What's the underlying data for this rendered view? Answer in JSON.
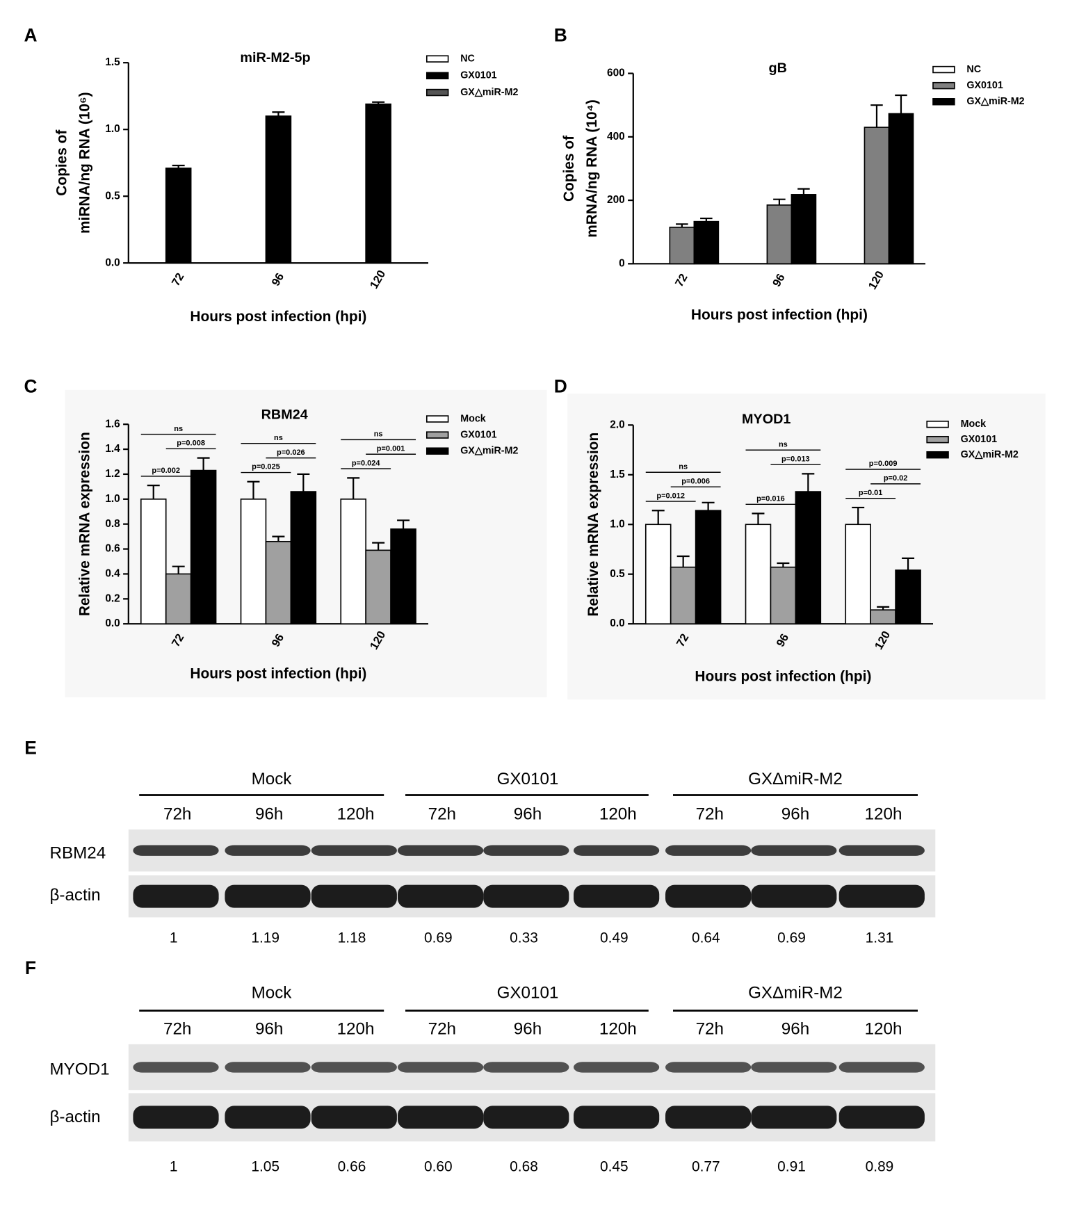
{
  "chart_data": [
    {
      "panel": "A",
      "type": "bar",
      "title": "miR-M2-5p",
      "ylabel": [
        "Copies of",
        "miRNA/ng RNA (10⁶)"
      ],
      "xlabel": "Hours post infection (hpi)",
      "categories": [
        "72",
        "96",
        "120"
      ],
      "series": [
        {
          "name": "NC",
          "color": "#ffffff",
          "values": [
            null,
            null,
            null
          ],
          "errors": [
            null,
            null,
            null
          ]
        },
        {
          "name": "GX0101",
          "color": "#000000",
          "values": [
            0.71,
            1.1,
            1.19
          ],
          "errors": [
            0.02,
            0.03,
            0.015
          ]
        },
        {
          "name": "GX△miR-M2",
          "color": "#555555",
          "values": [
            null,
            null,
            null
          ],
          "errors": [
            null,
            null,
            null
          ]
        }
      ],
      "ylim": [
        0,
        1.5
      ],
      "yticks": [
        {
          "value": 0,
          "label": "0.0"
        },
        0.5,
        {
          "value": 1,
          "label": "1.0"
        },
        1.5
      ]
    },
    {
      "panel": "B",
      "type": "bar",
      "title": "gB",
      "ylabel": [
        "Copies of",
        "mRNA/ng RNA (10⁴)"
      ],
      "xlabel": "Hours post infection (hpi)",
      "categories": [
        "72",
        "96",
        "120"
      ],
      "series": [
        {
          "name": "NC",
          "color": "#ffffff",
          "values": [
            null,
            null,
            null
          ],
          "errors": [
            null,
            null,
            null
          ]
        },
        {
          "name": "GX0101",
          "color": "#808080",
          "values": [
            115,
            185,
            430
          ],
          "errors": [
            10,
            18,
            70
          ]
        },
        {
          "name": "GX△miR-M2",
          "color": "#000000",
          "values": [
            133,
            218,
            473
          ],
          "errors": [
            10,
            18,
            58
          ]
        }
      ],
      "ylim": [
        0,
        600
      ],
      "yticks": [
        0,
        200,
        400,
        600
      ]
    },
    {
      "panel": "C",
      "type": "bar",
      "title": "RBM24",
      "ylabel": [
        "Relative mRNA expression"
      ],
      "xlabel": "Hours post infection (hpi)",
      "categories": [
        "72",
        "96",
        "120"
      ],
      "series": [
        {
          "name": "Mock",
          "color": "#ffffff",
          "values": [
            1,
            1,
            1
          ],
          "errors": [
            0.11,
            0.14,
            0.17
          ]
        },
        {
          "name": "GX0101",
          "color": "#a0a0a0",
          "values": [
            0.4,
            0.66,
            0.59
          ],
          "errors": [
            0.06,
            0.04,
            0.06
          ]
        },
        {
          "name": "GX△miR-M2",
          "color": "#000000",
          "values": [
            1.23,
            1.06,
            0.76
          ],
          "errors": [
            0.1,
            0.14,
            0.07
          ]
        }
      ],
      "ylim": [
        0,
        1.6
      ],
      "yticks": [
        {
          "value": 0,
          "label": "0.0"
        },
        0.2,
        0.4,
        0.6,
        0.8,
        {
          "value": 1,
          "label": "1.0"
        },
        1.2,
        1.4,
        1.6
      ],
      "annotations": [
        {
          "text": "p=0.002",
          "category": "72",
          "from": "Mock",
          "to": "GX0101"
        },
        {
          "text": "p=0.008",
          "category": "72",
          "from": "GX0101",
          "to": "GX△miR-M2"
        },
        {
          "text": "ns",
          "category": "72",
          "from": "Mock",
          "to": "GX△miR-M2"
        },
        {
          "text": "p=0.025",
          "category": "96",
          "from": "Mock",
          "to": "GX0101"
        },
        {
          "text": "p=0.026",
          "category": "96",
          "from": "GX0101",
          "to": "GX△miR-M2"
        },
        {
          "text": "ns",
          "category": "96",
          "from": "Mock",
          "to": "GX△miR-M2"
        },
        {
          "text": "p=0.024",
          "category": "120",
          "from": "Mock",
          "to": "GX0101"
        },
        {
          "text": "p=0.001",
          "category": "120",
          "from": "GX0101",
          "to": "GX△miR-M2"
        },
        {
          "text": "ns",
          "category": "120",
          "from": "Mock",
          "to": "GX△miR-M2"
        }
      ]
    },
    {
      "panel": "D",
      "type": "bar",
      "title": "MYOD1",
      "ylabel": [
        "Relative mRNA expression"
      ],
      "xlabel": "Hours post infection (hpi)",
      "categories": [
        "72",
        "96",
        "120"
      ],
      "series": [
        {
          "name": "Mock",
          "color": "#ffffff",
          "values": [
            1,
            1,
            1
          ],
          "errors": [
            0.14,
            0.11,
            0.17
          ]
        },
        {
          "name": "GX0101",
          "color": "#a0a0a0",
          "values": [
            0.57,
            0.57,
            0.14
          ],
          "errors": [
            0.11,
            0.04,
            0.03
          ]
        },
        {
          "name": "GX△miR-M2",
          "color": "#000000",
          "values": [
            1.14,
            1.33,
            0.54
          ],
          "errors": [
            0.08,
            0.18,
            0.12
          ]
        }
      ],
      "ylim": [
        0,
        2
      ],
      "yticks": [
        {
          "value": 0,
          "label": "0.0"
        },
        0.5,
        {
          "value": 1,
          "label": "1.0"
        },
        1.5,
        {
          "value": 2,
          "label": "2.0"
        }
      ],
      "annotations": [
        {
          "text": "p=0.012",
          "category": "72",
          "from": "Mock",
          "to": "GX0101"
        },
        {
          "text": "p=0.006",
          "category": "72",
          "from": "GX0101",
          "to": "GX△miR-M2"
        },
        {
          "text": "ns",
          "category": "72",
          "from": "Mock",
          "to": "GX△miR-M2"
        },
        {
          "text": "p=0.016",
          "category": "96",
          "from": "Mock",
          "to": "GX0101"
        },
        {
          "text": "p=0.013",
          "category": "96",
          "from": "GX0101",
          "to": "GX△miR-M2"
        },
        {
          "text": "ns",
          "category": "96",
          "from": "Mock",
          "to": "GX△miR-M2"
        },
        {
          "text": "p=0.01",
          "category": "120",
          "from": "Mock",
          "to": "GX0101"
        },
        {
          "text": "p=0.02",
          "category": "120",
          "from": "GX0101",
          "to": "GX△miR-M2"
        },
        {
          "text": "p=0.009",
          "category": "120",
          "from": "Mock",
          "to": "GX△miR-M2"
        }
      ]
    }
  ],
  "blots": [
    {
      "panel": "E",
      "groups": [
        {
          "name": "Mock",
          "lanes": [
            "72h",
            "96h",
            "120h"
          ]
        },
        {
          "name": "GX0101",
          "lanes": [
            "72h",
            "96h",
            "120h"
          ]
        },
        {
          "name": "GXΔmiR-M2",
          "lanes": [
            "72h",
            "96h",
            "120h"
          ]
        }
      ],
      "rows": [
        "RBM24",
        "β-actin"
      ],
      "quantification": [
        "1",
        "1.19",
        "1.18",
        "0.69",
        "0.33",
        "0.49",
        "0.64",
        "0.69",
        "1.31"
      ]
    },
    {
      "panel": "F",
      "groups": [
        {
          "name": "Mock",
          "lanes": [
            "72h",
            "96h",
            "120h"
          ]
        },
        {
          "name": "GX0101",
          "lanes": [
            "72h",
            "96h",
            "120h"
          ]
        },
        {
          "name": "GXΔmiR-M2",
          "lanes": [
            "72h",
            "96h",
            "120h"
          ]
        }
      ],
      "rows": [
        "MYOD1",
        "β-actin"
      ],
      "quantification": [
        "1",
        "1.05",
        "0.66",
        "0.60",
        "0.68",
        "0.45",
        "0.77",
        "0.91",
        "0.89"
      ]
    }
  ]
}
